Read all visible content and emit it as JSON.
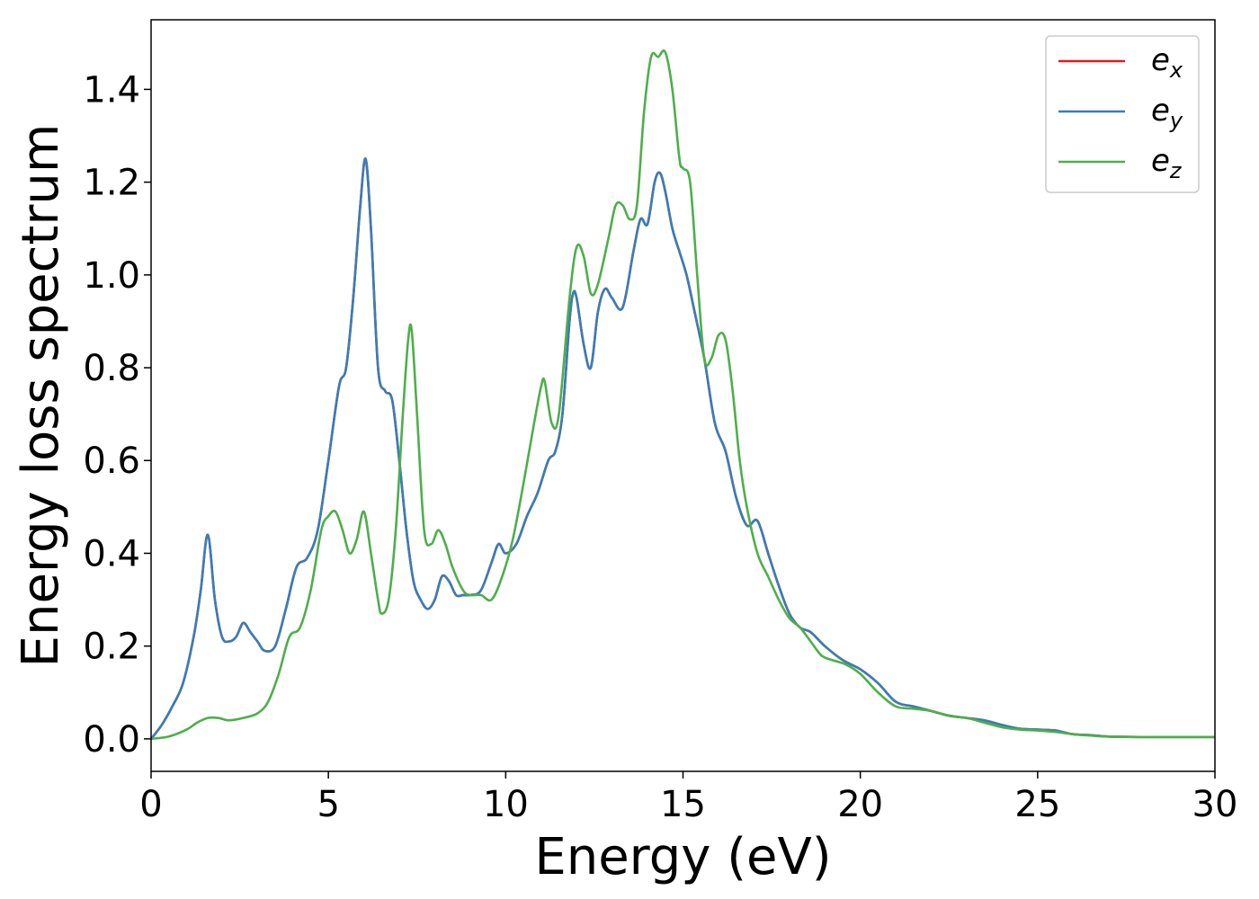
{
  "chart_data": {
    "type": "line",
    "title": "",
    "xlabel": "Energy (eV)",
    "ylabel": "Energy loss spectrum",
    "xlim": [
      0,
      30
    ],
    "ylim": [
      -0.07,
      1.55
    ],
    "xticks": [
      0,
      5,
      10,
      15,
      20,
      25,
      30
    ],
    "xtick_labels": [
      "0",
      "5",
      "10",
      "15",
      "20",
      "25",
      "30"
    ],
    "yticks": [
      0.0,
      0.2,
      0.4,
      0.6,
      0.8,
      1.0,
      1.2,
      1.4
    ],
    "ytick_labels": [
      "0.0",
      "0.2",
      "0.4",
      "0.6",
      "0.8",
      "1.0",
      "1.2",
      "1.4"
    ],
    "grid": false,
    "legend_position": "top-right",
    "series": [
      {
        "name": "e_x",
        "label_base": "e",
        "label_sub": "x",
        "color": "#e41a1c",
        "x": [
          0,
          0.3,
          0.6,
          0.9,
          1.2,
          1.4,
          1.6,
          1.8,
          2.0,
          2.2,
          2.4,
          2.6,
          2.8,
          3.0,
          3.2,
          3.5,
          3.8,
          4.1,
          4.4,
          4.7,
          5.0,
          5.3,
          5.5,
          5.7,
          5.9,
          6.05,
          6.2,
          6.4,
          6.6,
          6.8,
          7.0,
          7.2,
          7.4,
          7.6,
          7.8,
          8.0,
          8.2,
          8.4,
          8.6,
          8.8,
          9.0,
          9.3,
          9.6,
          9.8,
          10.0,
          10.3,
          10.6,
          10.9,
          11.2,
          11.4,
          11.6,
          11.8,
          11.9,
          12.0,
          12.2,
          12.4,
          12.6,
          12.8,
          13.0,
          13.3,
          13.6,
          13.8,
          14.0,
          14.2,
          14.35,
          14.5,
          14.7,
          14.9,
          15.1,
          15.3,
          15.6,
          15.9,
          16.2,
          16.5,
          16.8,
          17.1,
          17.4,
          17.7,
          18.0,
          18.3,
          18.6,
          19.0,
          19.5,
          20.0,
          20.5,
          21.0,
          21.5,
          22.0,
          22.5,
          23.0,
          23.5,
          24.0,
          24.5,
          25.0,
          25.5,
          26.0,
          26.5,
          27.0,
          28.0,
          29.0,
          30.0
        ],
        "y": [
          0.0,
          0.03,
          0.07,
          0.12,
          0.22,
          0.32,
          0.44,
          0.3,
          0.22,
          0.21,
          0.22,
          0.25,
          0.23,
          0.21,
          0.19,
          0.2,
          0.28,
          0.37,
          0.39,
          0.45,
          0.6,
          0.76,
          0.8,
          0.95,
          1.15,
          1.25,
          1.1,
          0.8,
          0.75,
          0.73,
          0.6,
          0.45,
          0.34,
          0.3,
          0.28,
          0.3,
          0.35,
          0.34,
          0.31,
          0.31,
          0.31,
          0.32,
          0.38,
          0.42,
          0.4,
          0.42,
          0.48,
          0.53,
          0.6,
          0.62,
          0.7,
          0.9,
          0.96,
          0.95,
          0.85,
          0.8,
          0.92,
          0.97,
          0.95,
          0.93,
          1.05,
          1.12,
          1.11,
          1.2,
          1.22,
          1.18,
          1.1,
          1.05,
          1.0,
          0.93,
          0.82,
          0.68,
          0.62,
          0.52,
          0.46,
          0.47,
          0.4,
          0.33,
          0.27,
          0.24,
          0.23,
          0.2,
          0.17,
          0.15,
          0.12,
          0.08,
          0.07,
          0.06,
          0.05,
          0.045,
          0.04,
          0.03,
          0.022,
          0.02,
          0.018,
          0.01,
          0.008,
          0.005,
          0.004,
          0.004,
          0.004
        ]
      },
      {
        "name": "e_y",
        "label_base": "e",
        "label_sub": "y",
        "color": "#377eb8",
        "x": [
          0,
          0.3,
          0.6,
          0.9,
          1.2,
          1.4,
          1.6,
          1.8,
          2.0,
          2.2,
          2.4,
          2.6,
          2.8,
          3.0,
          3.2,
          3.5,
          3.8,
          4.1,
          4.4,
          4.7,
          5.0,
          5.3,
          5.5,
          5.7,
          5.9,
          6.05,
          6.2,
          6.4,
          6.6,
          6.8,
          7.0,
          7.2,
          7.4,
          7.6,
          7.8,
          8.0,
          8.2,
          8.4,
          8.6,
          8.8,
          9.0,
          9.3,
          9.6,
          9.8,
          10.0,
          10.3,
          10.6,
          10.9,
          11.2,
          11.4,
          11.6,
          11.8,
          11.9,
          12.0,
          12.2,
          12.4,
          12.6,
          12.8,
          13.0,
          13.3,
          13.6,
          13.8,
          14.0,
          14.2,
          14.35,
          14.5,
          14.7,
          14.9,
          15.1,
          15.3,
          15.6,
          15.9,
          16.2,
          16.5,
          16.8,
          17.1,
          17.4,
          17.7,
          18.0,
          18.3,
          18.6,
          19.0,
          19.5,
          20.0,
          20.5,
          21.0,
          21.5,
          22.0,
          22.5,
          23.0,
          23.5,
          24.0,
          24.5,
          25.0,
          25.5,
          26.0,
          26.5,
          27.0,
          28.0,
          29.0,
          30.0
        ],
        "y": [
          0.0,
          0.03,
          0.07,
          0.12,
          0.22,
          0.32,
          0.44,
          0.3,
          0.22,
          0.21,
          0.22,
          0.25,
          0.23,
          0.21,
          0.19,
          0.2,
          0.28,
          0.37,
          0.39,
          0.45,
          0.6,
          0.76,
          0.8,
          0.95,
          1.15,
          1.25,
          1.1,
          0.8,
          0.75,
          0.73,
          0.6,
          0.45,
          0.34,
          0.3,
          0.28,
          0.3,
          0.35,
          0.34,
          0.31,
          0.31,
          0.31,
          0.32,
          0.38,
          0.42,
          0.4,
          0.42,
          0.48,
          0.53,
          0.6,
          0.62,
          0.7,
          0.9,
          0.96,
          0.95,
          0.85,
          0.8,
          0.92,
          0.97,
          0.95,
          0.93,
          1.05,
          1.12,
          1.11,
          1.2,
          1.22,
          1.18,
          1.1,
          1.05,
          1.0,
          0.93,
          0.82,
          0.68,
          0.62,
          0.52,
          0.46,
          0.47,
          0.4,
          0.33,
          0.27,
          0.24,
          0.23,
          0.2,
          0.17,
          0.15,
          0.12,
          0.08,
          0.07,
          0.06,
          0.05,
          0.045,
          0.04,
          0.03,
          0.022,
          0.02,
          0.018,
          0.01,
          0.008,
          0.005,
          0.004,
          0.004,
          0.004
        ]
      },
      {
        "name": "e_z",
        "label_base": "e",
        "label_sub": "z",
        "color": "#4daf4a",
        "x": [
          0,
          0.5,
          1.0,
          1.3,
          1.6,
          1.9,
          2.2,
          2.6,
          3.0,
          3.3,
          3.6,
          3.9,
          4.2,
          4.5,
          4.8,
          5.0,
          5.2,
          5.4,
          5.6,
          5.8,
          6.0,
          6.2,
          6.4,
          6.5,
          6.7,
          6.9,
          7.1,
          7.25,
          7.35,
          7.5,
          7.7,
          7.9,
          8.1,
          8.3,
          8.5,
          8.8,
          9.0,
          9.3,
          9.6,
          9.9,
          10.2,
          10.5,
          10.8,
          11.0,
          11.1,
          11.3,
          11.5,
          11.8,
          12.0,
          12.2,
          12.4,
          12.6,
          12.9,
          13.1,
          13.3,
          13.5,
          13.7,
          13.9,
          14.1,
          14.3,
          14.5,
          14.7,
          14.9,
          15.0,
          15.2,
          15.4,
          15.6,
          15.8,
          16.0,
          16.2,
          16.4,
          16.6,
          16.8,
          17.1,
          17.4,
          17.7,
          18.0,
          18.3,
          18.6,
          18.9,
          19.2,
          19.6,
          20.0,
          20.5,
          21.0,
          21.5,
          22.0,
          22.5,
          23.0,
          23.5,
          24.0,
          24.5,
          25.0,
          25.5,
          26.0,
          26.5,
          27.0,
          28.0,
          29.0,
          30.0
        ],
        "y": [
          0.0,
          0.005,
          0.02,
          0.035,
          0.045,
          0.045,
          0.04,
          0.045,
          0.055,
          0.08,
          0.14,
          0.22,
          0.24,
          0.32,
          0.45,
          0.48,
          0.49,
          0.45,
          0.4,
          0.43,
          0.49,
          0.4,
          0.3,
          0.27,
          0.3,
          0.45,
          0.7,
          0.86,
          0.88,
          0.7,
          0.45,
          0.42,
          0.45,
          0.42,
          0.37,
          0.32,
          0.31,
          0.31,
          0.3,
          0.35,
          0.43,
          0.55,
          0.68,
          0.76,
          0.77,
          0.68,
          0.7,
          0.95,
          1.06,
          1.04,
          0.96,
          0.98,
          1.08,
          1.15,
          1.15,
          1.12,
          1.15,
          1.35,
          1.47,
          1.47,
          1.48,
          1.4,
          1.25,
          1.23,
          1.2,
          1.0,
          0.82,
          0.82,
          0.87,
          0.86,
          0.75,
          0.6,
          0.5,
          0.4,
          0.35,
          0.3,
          0.26,
          0.24,
          0.21,
          0.18,
          0.17,
          0.16,
          0.14,
          0.1,
          0.07,
          0.065,
          0.06,
          0.05,
          0.045,
          0.035,
          0.025,
          0.02,
          0.018,
          0.015,
          0.01,
          0.007,
          0.005,
          0.004,
          0.004,
          0.004
        ]
      }
    ]
  }
}
